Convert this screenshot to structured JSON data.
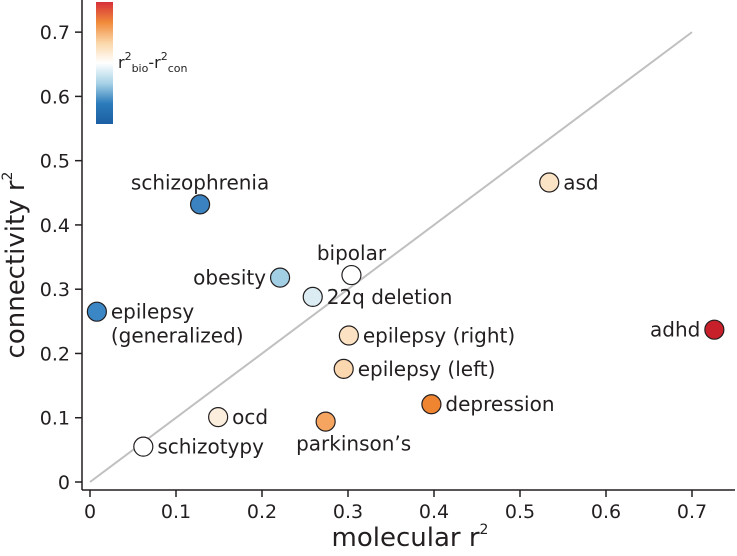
{
  "chart_data": {
    "type": "scatter",
    "xlabel": "molecular r",
    "xlabel_sup": "2",
    "ylabel": "connectivity r",
    "ylabel_sup": "2",
    "xlim": [
      0,
      0.75
    ],
    "ylim": [
      0,
      0.75
    ],
    "x_ticks": [
      0,
      0.1,
      0.2,
      0.3,
      0.4,
      0.5,
      0.6,
      0.7
    ],
    "x_tick_labels": [
      "0",
      "0.1",
      "0.2",
      "0.3",
      "0.4",
      "0.5",
      "0.6",
      "0.7"
    ],
    "y_ticks": [
      0,
      0.1,
      0.2,
      0.3,
      0.4,
      0.5,
      0.6,
      0.7
    ],
    "y_tick_labels": [
      "0",
      "0.1",
      "0.2",
      "0.3",
      "0.4",
      "0.5",
      "0.6",
      "0.7"
    ],
    "identity_line": {
      "from": [
        0,
        0
      ],
      "to": [
        0.7,
        0.7
      ],
      "color": "#c0c0c0"
    },
    "colorbar": {
      "label_parts": [
        "r",
        "2",
        "bio",
        "-r",
        "2",
        "con"
      ],
      "colors_top_to_bottom": [
        "#d7303a",
        "#f08a3a",
        "#fbd6a8",
        "#ffffff",
        "#a7d2e6",
        "#2b7bbb",
        "#1b5fa3"
      ]
    },
    "points": [
      {
        "label": "schizophrenia",
        "x": 0.128,
        "y": 0.432,
        "color": "#3b82c0",
        "label_pos": "above"
      },
      {
        "label": "asd",
        "x": 0.534,
        "y": 0.466,
        "color": "#fbe3c6",
        "label_pos": "right"
      },
      {
        "label": "bipolar",
        "x": 0.304,
        "y": 0.322,
        "color": "#ffffff",
        "label_pos": "above"
      },
      {
        "label": "obesity",
        "x": 0.221,
        "y": 0.318,
        "color": "#a3cfe5",
        "label_pos": "left"
      },
      {
        "label": "22q deletion",
        "x": 0.259,
        "y": 0.288,
        "color": "#dbecf3",
        "label_pos": "right"
      },
      {
        "label": "epilepsy\n(generalized)",
        "x": 0.008,
        "y": 0.265,
        "color": "#3b87c5",
        "label_pos": "right"
      },
      {
        "label": "adhd",
        "x": 0.726,
        "y": 0.237,
        "color": "#c8202b",
        "label_pos": "left"
      },
      {
        "label": "epilepsy (right)",
        "x": 0.301,
        "y": 0.228,
        "color": "#fce2c2",
        "label_pos": "right"
      },
      {
        "label": "epilepsy (left)",
        "x": 0.295,
        "y": 0.176,
        "color": "#fad7ae",
        "label_pos": "right"
      },
      {
        "label": "depression",
        "x": 0.397,
        "y": 0.121,
        "color": "#f08531",
        "label_pos": "right"
      },
      {
        "label": "ocd",
        "x": 0.149,
        "y": 0.101,
        "color": "#fbeedd",
        "label_pos": "right"
      },
      {
        "label": "parkinson’s",
        "x": 0.274,
        "y": 0.094,
        "color": "#f5a560",
        "label_pos": "below"
      },
      {
        "label": "schizotypy",
        "x": 0.062,
        "y": 0.055,
        "color": "#ffffff",
        "label_pos": "right"
      }
    ]
  }
}
